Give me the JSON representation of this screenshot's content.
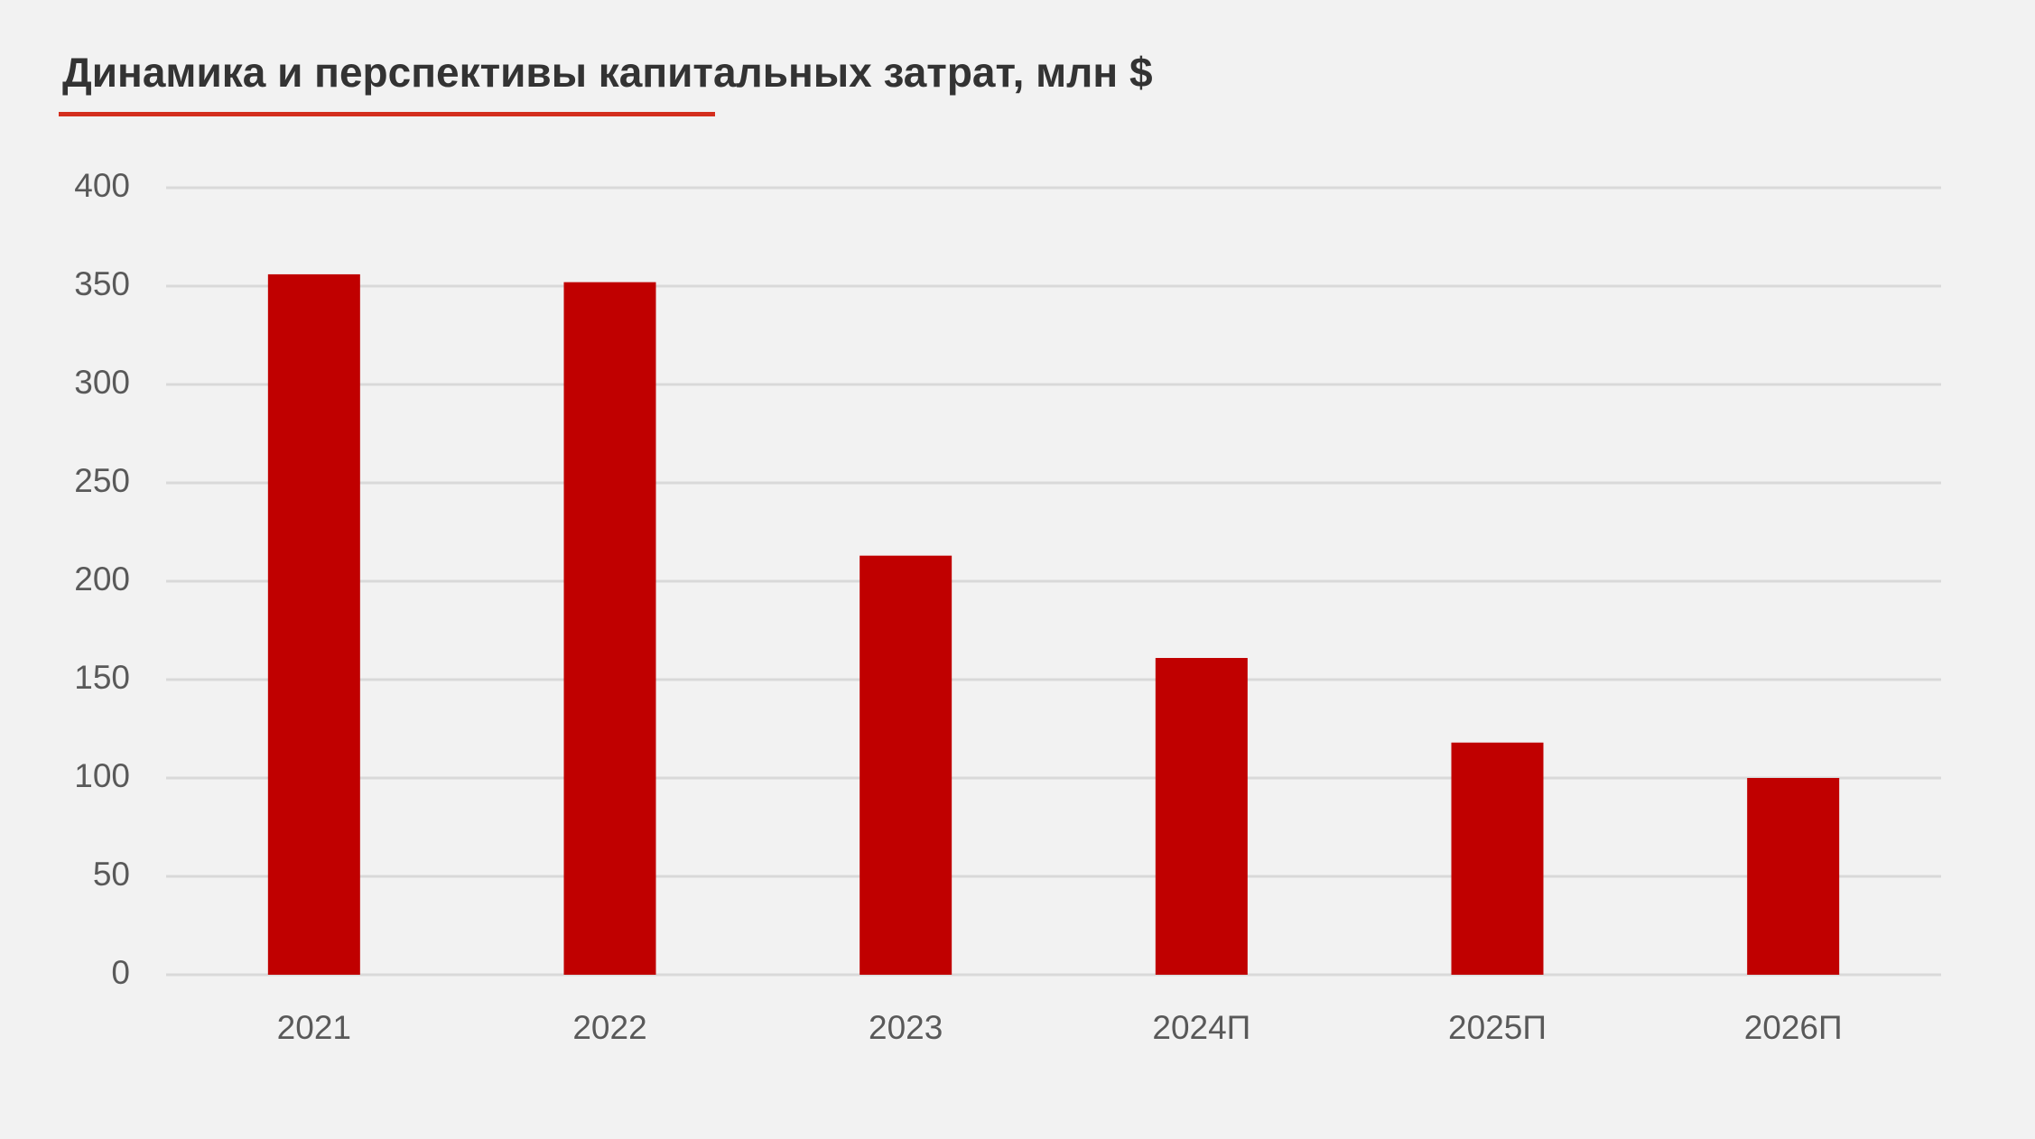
{
  "chart_data": {
    "type": "bar",
    "title": "Динамика и перспективы капитальных затрат, млн $",
    "categories": [
      "2021",
      "2022",
      "2023",
      "2024П",
      "2025П",
      "2026П"
    ],
    "values": [
      356,
      352,
      213,
      161,
      118,
      100
    ],
    "color": "#c00000",
    "ylim": [
      0,
      400
    ],
    "yticks": [
      0,
      50,
      100,
      150,
      200,
      250,
      300,
      350,
      400
    ],
    "grid": true
  }
}
